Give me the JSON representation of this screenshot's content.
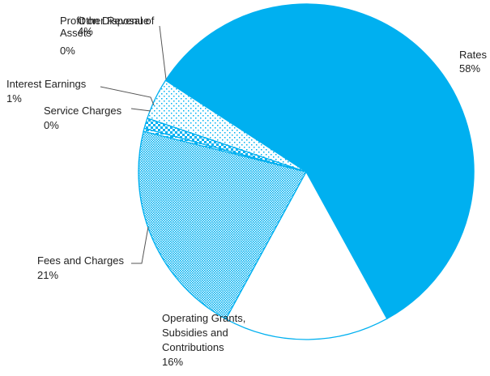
{
  "chart_data": {
    "type": "pie",
    "title": "",
    "start_angle_deg": -147,
    "direction": "clockwise",
    "slices": [
      {
        "label": "Rates",
        "value": 58,
        "value_label": "58%",
        "color": "#00b0f0",
        "pattern": "solid"
      },
      {
        "label": "Operating Grants, Subsidies and Contributions",
        "value": 16,
        "value_label": "16%",
        "color": "#ffffff",
        "pattern": "none"
      },
      {
        "label": "Fees and Charges",
        "value": 21,
        "value_label": "21%",
        "color": "#00b0f0",
        "pattern": "dense-dots"
      },
      {
        "label": "Service Charges",
        "value": 0.3,
        "value_label": "0%",
        "color": "#00b0f0",
        "pattern": "dashes"
      },
      {
        "label": "Interest Earnings",
        "value": 1,
        "value_label": "1%",
        "color": "#00b0f0",
        "pattern": "checker"
      },
      {
        "label": "Other Revenue",
        "value": 4,
        "value_label": "4%",
        "color": "#00b0f0",
        "pattern": "sparse-dots"
      },
      {
        "label": "Profit on Disposal of Assets",
        "value": 0,
        "value_label": "0%",
        "color": "#00b0f0",
        "pattern": "none"
      }
    ]
  }
}
